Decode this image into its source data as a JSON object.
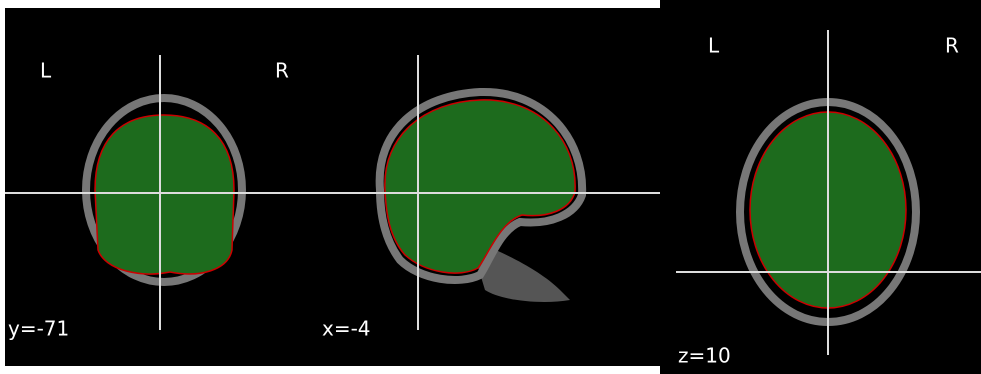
{
  "panels": [
    {
      "left": "L",
      "right": "R",
      "cut": "y=-71"
    },
    {
      "cut": "x=-4"
    },
    {
      "left": "L",
      "right": "R",
      "cut": "z=10"
    }
  ]
}
